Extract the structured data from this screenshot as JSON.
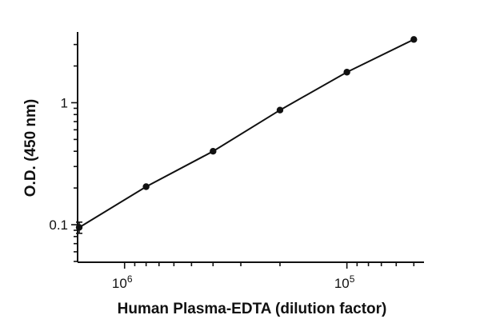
{
  "chart_data": {
    "type": "scatter",
    "title": "",
    "xlabel": "Human Plasma-EDTA (dilution factor)",
    "ylabel": "O.D. (450 nm)",
    "x_scale": "log",
    "x_reversed": true,
    "y_scale": "log",
    "xlim": [
      1600000,
      45000
    ],
    "ylim": [
      0.05,
      3.8
    ],
    "grid": false,
    "x_ticks": [
      {
        "value": 1000000,
        "base": "10",
        "exp": "6"
      },
      {
        "value": 100000,
        "base": "10",
        "exp": "5"
      }
    ],
    "y_ticks": [
      {
        "value": 0.1,
        "label": "0.1"
      },
      {
        "value": 1,
        "label": "1"
      }
    ],
    "series": [
      {
        "points": [
          {
            "x": 1600000,
            "y": 0.095,
            "err": 0.01
          },
          {
            "x": 800000,
            "y": 0.205,
            "err": 0
          },
          {
            "x": 400000,
            "y": 0.4,
            "err": 0
          },
          {
            "x": 200000,
            "y": 0.87,
            "err": 0
          },
          {
            "x": 100000,
            "y": 1.78,
            "err": 0
          },
          {
            "x": 50000,
            "y": 3.3,
            "err": 0
          }
        ],
        "color": "#111111"
      }
    ]
  }
}
